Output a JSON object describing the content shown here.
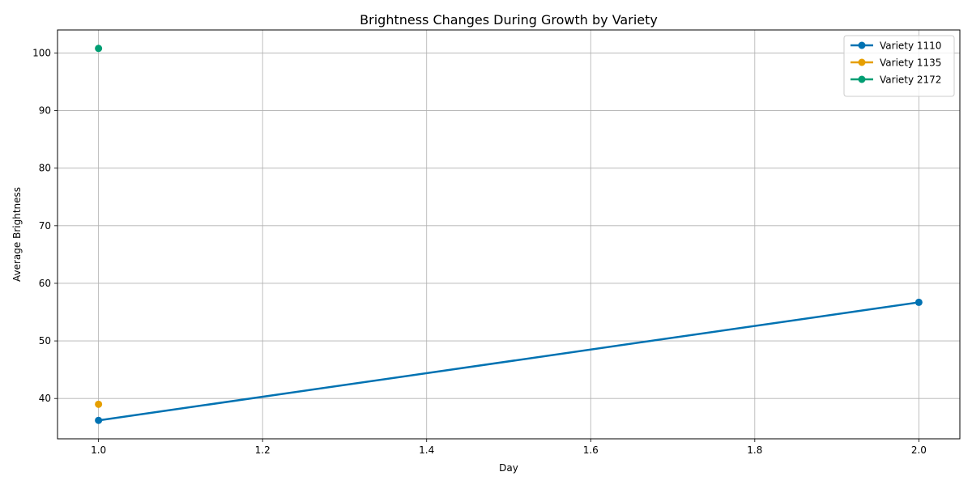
{
  "chart_data": {
    "type": "line",
    "title": "Brightness Changes During Growth by Variety",
    "xlabel": "Day",
    "ylabel": "Average Brightness",
    "xlim": [
      0.95,
      2.05
    ],
    "ylim": [
      33,
      104
    ],
    "xticks": [
      1.0,
      1.2,
      1.4,
      1.6,
      1.8,
      2.0
    ],
    "xtick_labels": [
      "1.0",
      "1.2",
      "1.4",
      "1.6",
      "1.8",
      "2.0"
    ],
    "yticks": [
      40,
      50,
      60,
      70,
      80,
      90,
      100
    ],
    "ytick_labels": [
      "40",
      "50",
      "60",
      "70",
      "80",
      "90",
      "100"
    ],
    "grid": true,
    "legend_position": "top-right",
    "series": [
      {
        "name": "Variety 1110",
        "color": "#0072b2",
        "points": [
          {
            "x": 1.0,
            "y": 36.2
          },
          {
            "x": 2.0,
            "y": 56.7
          }
        ]
      },
      {
        "name": "Variety 1135",
        "color": "#e69f00",
        "points": [
          {
            "x": 1.0,
            "y": 39.0
          }
        ]
      },
      {
        "name": "Variety 2172",
        "color": "#009e73",
        "points": [
          {
            "x": 1.0,
            "y": 100.8
          }
        ]
      }
    ]
  }
}
